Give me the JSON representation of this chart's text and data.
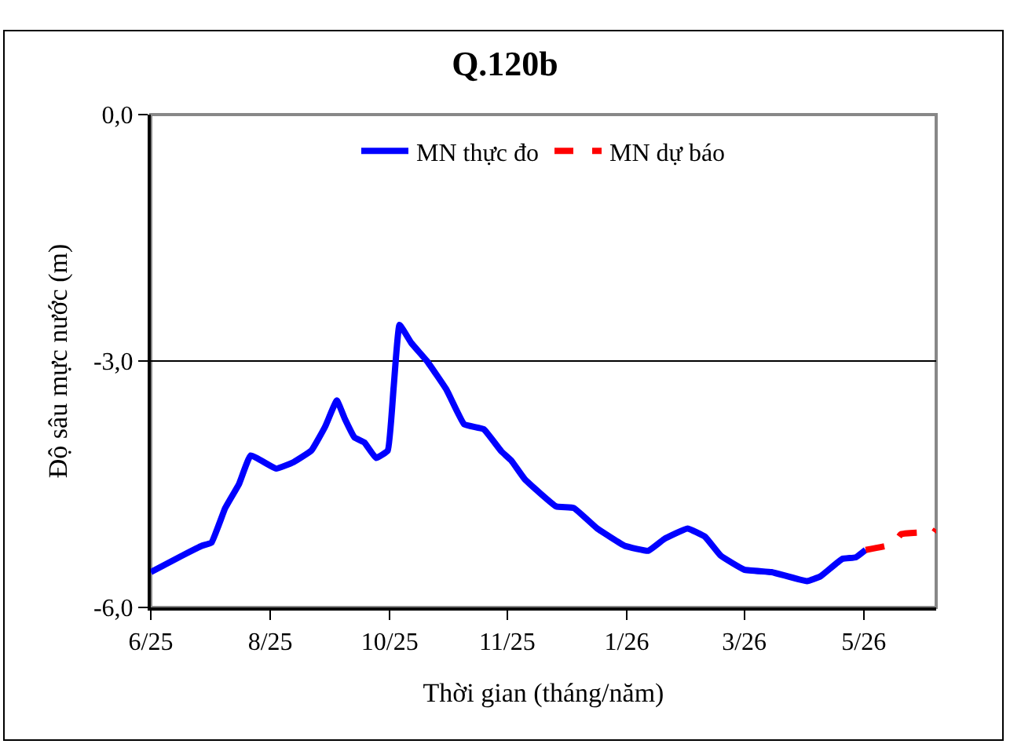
{
  "chart_data": {
    "type": "line",
    "title": "Q.120b",
    "xlabel": "Thời gian (tháng/năm)",
    "ylabel": "Độ sâu mực nước (m)",
    "xlim": [
      "2025-06-01",
      "2026-07-07"
    ],
    "xticks": [
      {
        "value": "2025-06-01",
        "label": "6/25"
      },
      {
        "value": "2025-08-01",
        "label": "8/25"
      },
      {
        "value": "2025-10-01",
        "label": "10/25"
      },
      {
        "value": "2025-11-30",
        "label": "11/25"
      },
      {
        "value": "2026-01-30",
        "label": "1/26"
      },
      {
        "value": "2026-03-31",
        "label": "3/26"
      },
      {
        "value": "2026-05-31",
        "label": "5/26"
      }
    ],
    "ylim": [
      -6,
      0
    ],
    "yticks": [
      {
        "value": -6,
        "label": "-6,0"
      },
      {
        "value": -3,
        "label": "-3,0"
      },
      {
        "value": 0,
        "label": "0,0"
      }
    ],
    "grid": "y",
    "legend": "top",
    "series": [
      {
        "name": "MN thực đo",
        "color": "#0000ff",
        "line_style": "solid",
        "x": [
          "2025-06-01",
          "2025-06-17",
          "2025-06-27",
          "2025-07-02",
          "2025-07-09",
          "2025-07-16",
          "2025-07-22",
          "2025-08-04",
          "2025-08-13",
          "2025-08-22",
          "2025-08-29",
          "2025-09-04",
          "2025-09-08",
          "2025-09-13",
          "2025-09-18",
          "2025-09-24",
          "2025-09-30",
          "2025-10-03",
          "2025-10-06",
          "2025-10-12",
          "2025-10-20",
          "2025-10-30",
          "2025-11-08",
          "2025-11-18",
          "2025-11-27",
          "2025-12-02",
          "2025-12-09",
          "2025-12-25",
          "2026-01-03",
          "2026-01-15",
          "2026-01-29",
          "2026-02-10",
          "2026-02-18",
          "2026-03-02",
          "2026-03-11",
          "2026-03-19",
          "2026-03-31",
          "2026-04-14",
          "2026-05-02",
          "2026-05-09",
          "2026-05-20",
          "2026-05-27",
          "2026-06-01"
        ],
        "values": [
          -5.57,
          -5.37,
          -5.25,
          -5.21,
          -4.79,
          -4.5,
          -4.15,
          -4.31,
          -4.23,
          -4.09,
          -3.8,
          -3.48,
          -3.7,
          -3.93,
          -3.99,
          -4.18,
          -4.09,
          -3.32,
          -2.56,
          -2.78,
          -3.0,
          -3.35,
          -3.77,
          -3.83,
          -4.1,
          -4.21,
          -4.44,
          -4.77,
          -4.79,
          -5.04,
          -5.25,
          -5.31,
          -5.17,
          -5.04,
          -5.14,
          -5.37,
          -5.54,
          -5.57,
          -5.68,
          -5.62,
          -5.41,
          -5.39,
          -5.3
        ]
      },
      {
        "name": "MN dự báo",
        "color": "#ff0000",
        "line_style": "dashed",
        "x": [
          "2026-06-01",
          "2026-06-15",
          "2026-06-19",
          "2026-06-28",
          "2026-07-05",
          "2026-07-07"
        ],
        "values": [
          -5.3,
          -5.23,
          -5.11,
          -5.09,
          -5.11,
          -5.05
        ]
      }
    ]
  }
}
